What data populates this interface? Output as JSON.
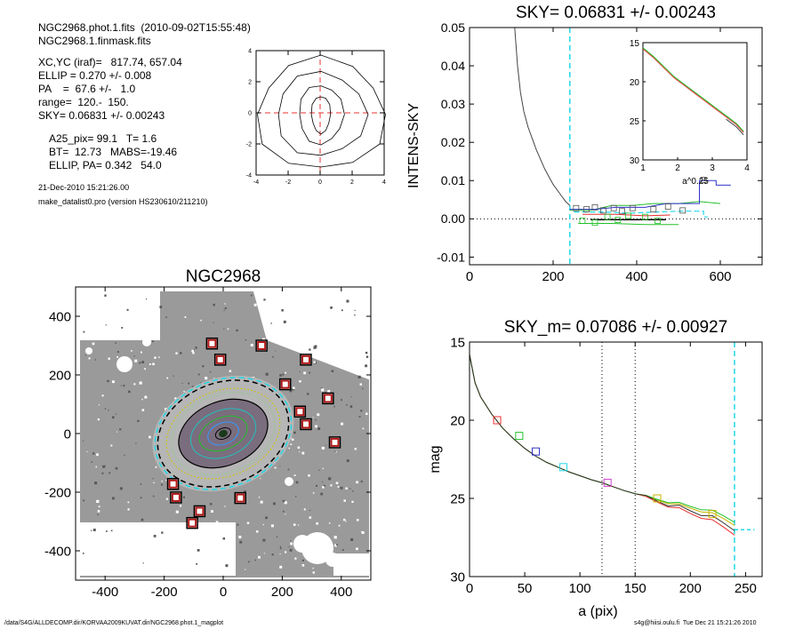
{
  "header": {
    "line1": "NGC2968.phot.1.fits  (2010-09-02T15:55:48)",
    "line2": "NGC2968.1.finmask.fits",
    "params": [
      "XC,YC (iraf)=   817.74, 657.04",
      "ELLIP = 0.270 +/- 0.008",
      "PA    =  67.6 +/-   1.0",
      "range=  120.-  150.",
      "SKY= 0.06831 +/- 0.00243"
    ],
    "params2": [
      "A25_pix= 99.1   T= 1.6",
      "BT=  12.73   MABS=-19.46",
      "ELLIP, PA= 0.342   54.0"
    ],
    "date": "21-Dec-2010 15:21:26.00",
    "program": "make_datalist0.pro (version HS230610/211210)"
  },
  "footer": {
    "path": "/data/S4G/ALLDECOMP.dir/KORVAA2009KUVAT.dir/NGC2968.phot.1_magplot",
    "user": "s4g@hiisi.oulu.fi  Tue Dec 21 15:21:26 2010"
  },
  "colors": {
    "cyan": "#22d8e8",
    "red": "#e83030",
    "green": "#22c02a",
    "blue": "#3333cc",
    "grey": "#808080"
  },
  "chart_data": [
    {
      "type": "contour",
      "xlim": [
        -4,
        4
      ],
      "ylim": [
        -4,
        4
      ],
      "xticks": [
        -4,
        -2,
        0,
        2,
        4
      ],
      "yticks": [
        -4,
        -2,
        0,
        2,
        4
      ],
      "contour_semi_axes": [
        [
          0.6,
          1.2
        ],
        [
          1.4,
          1.9
        ],
        [
          2.8,
          2.7
        ],
        [
          4.0,
          3.6
        ]
      ]
    },
    {
      "type": "line",
      "title": "SKY= 0.06831 +/- 0.00243",
      "ylabel": "INTENS-SKY",
      "xlim": [
        0,
        700
      ],
      "ylim": [
        -0.012,
        0.05
      ],
      "xticks": [
        0,
        200,
        400,
        600
      ],
      "yticks": [
        0.05,
        0.04,
        0.03,
        0.02,
        0.01,
        0.0,
        -0.01
      ],
      "ytick_labels": [
        "0.05",
        "0.04",
        "0.03",
        "0.02",
        "0.01",
        "0.00",
        "-0.01"
      ],
      "sky_radius": 240,
      "profile": [
        [
          108,
          0.05
        ],
        [
          115,
          0.04
        ],
        [
          122,
          0.033
        ],
        [
          130,
          0.028
        ],
        [
          140,
          0.024
        ],
        [
          150,
          0.021
        ],
        [
          160,
          0.018
        ],
        [
          170,
          0.0155
        ],
        [
          180,
          0.013
        ],
        [
          190,
          0.011
        ],
        [
          200,
          0.009
        ],
        [
          210,
          0.0075
        ],
        [
          220,
          0.006
        ],
        [
          230,
          0.0045
        ],
        [
          240,
          0.0035
        ]
      ],
      "squares": [
        [
          255,
          0.0028
        ],
        [
          280,
          0.0025
        ],
        [
          300,
          0.003
        ],
        [
          320,
          0.0022
        ],
        [
          345,
          0.0028
        ],
        [
          365,
          0.002
        ],
        [
          390,
          0.0028
        ],
        [
          440,
          0.0025
        ],
        [
          475,
          0.0032
        ],
        [
          510,
          0.0022
        ],
        [
          560,
          0.0102
        ],
        [
          330,
          0.0005
        ],
        [
          355,
          -0.0003
        ],
        [
          380,
          0.0008
        ],
        [
          420,
          0.0005
        ],
        [
          450,
          -0.0005
        ],
        [
          300,
          -0.001
        ],
        [
          270,
          -0.0005
        ]
      ],
      "inset": {
        "xlabel": "a^0.25",
        "xlim": [
          1,
          4
        ],
        "ylim": [
          15,
          30
        ],
        "xticks": [
          1,
          2,
          3,
          4
        ],
        "yticks": [
          15,
          20,
          25,
          30
        ],
        "profile": [
          [
            1.0,
            15.8
          ],
          [
            1.3,
            16.9
          ],
          [
            1.6,
            18.2
          ],
          [
            1.9,
            19.5
          ],
          [
            2.2,
            20.5
          ],
          [
            2.5,
            21.5
          ],
          [
            2.8,
            22.5
          ],
          [
            3.1,
            23.5
          ],
          [
            3.4,
            24.5
          ],
          [
            3.7,
            25.5
          ],
          [
            3.9,
            26.5
          ]
        ]
      }
    },
    {
      "type": "image",
      "title": "NGC2968",
      "xlim": [
        -500,
        500
      ],
      "ylim": [
        -500,
        500
      ],
      "xticks": [
        -400,
        -200,
        0,
        200,
        400
      ],
      "yticks": [
        400,
        200,
        0,
        -200,
        -400
      ],
      "markers": [
        [
          -38,
          307
        ],
        [
          130,
          300
        ],
        [
          -10,
          252
        ],
        [
          280,
          252
        ],
        [
          210,
          168
        ],
        [
          355,
          120
        ],
        [
          260,
          75
        ],
        [
          280,
          32
        ],
        [
          378,
          -30
        ],
        [
          -170,
          -172
        ],
        [
          -160,
          -218
        ],
        [
          58,
          -220
        ],
        [
          -80,
          -265
        ],
        [
          -105,
          -305
        ]
      ]
    },
    {
      "type": "line",
      "title": "SKY_m=  0.07086 +/- 0.00927",
      "xlabel": "a (pix)",
      "ylabel": "mag",
      "xlim": [
        0,
        265
      ],
      "ylim": [
        15,
        30
      ],
      "xticks": [
        0,
        50,
        100,
        150,
        200,
        250
      ],
      "yticks": [
        15,
        20,
        25,
        30
      ],
      "vlines_dotted": [
        120,
        150
      ],
      "sky_radius": 240,
      "profile": [
        [
          0,
          15.8
        ],
        [
          5,
          17.6
        ],
        [
          10,
          18.5
        ],
        [
          20,
          19.6
        ],
        [
          30,
          20.5
        ],
        [
          40,
          21.2
        ],
        [
          50,
          21.8
        ],
        [
          60,
          22.3
        ],
        [
          70,
          22.7
        ],
        [
          80,
          23.0
        ],
        [
          90,
          23.3
        ],
        [
          100,
          23.55
        ],
        [
          110,
          23.8
        ],
        [
          120,
          24.0
        ],
        [
          130,
          24.25
        ],
        [
          140,
          24.5
        ],
        [
          150,
          24.7
        ],
        [
          160,
          24.95
        ],
        [
          170,
          25.15
        ],
        [
          180,
          25.35
        ],
        [
          190,
          25.55
        ],
        [
          200,
          25.75
        ],
        [
          210,
          25.95
        ],
        [
          220,
          26.2
        ],
        [
          230,
          26.5
        ],
        [
          240,
          26.9
        ]
      ],
      "squares": [
        [
          25,
          20.0,
          "red"
        ],
        [
          45,
          21.0,
          "green"
        ],
        [
          60,
          22.0,
          "blue"
        ],
        [
          85,
          23.0,
          "cyan"
        ],
        [
          125,
          24.0,
          "#cc44cc"
        ],
        [
          170,
          25.0,
          "#c8b400"
        ],
        [
          220,
          26.0,
          "#c8b400"
        ]
      ]
    }
  ]
}
